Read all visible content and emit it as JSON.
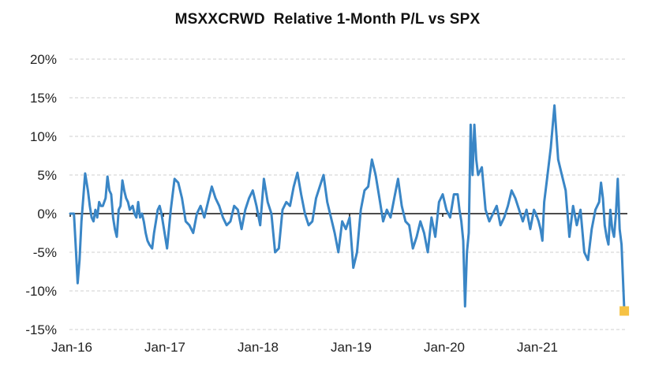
{
  "chart_data": {
    "type": "line",
    "title": "MSXXCRWD  Relative 1-Month P/L vs SPX",
    "xlabel": "",
    "ylabel": "",
    "y_unit": "%",
    "ylim": [
      -15,
      20
    ],
    "y_ticks": [
      20,
      15,
      10,
      5,
      0,
      -5,
      -10,
      -15
    ],
    "y_tick_labels": [
      "20%",
      "15%",
      "10%",
      "5%",
      "0%",
      "-5%",
      "-10%",
      "-15%"
    ],
    "x_ticks": [
      2016,
      2017,
      2018,
      2019,
      2020,
      2021
    ],
    "x_tick_labels": [
      "Jan-16",
      "Jan-17",
      "Jan-18",
      "Jan-19",
      "Jan-20",
      "Jan-21"
    ],
    "xlim": [
      2016.0,
      2021.95
    ],
    "grid": "horizontal-dashed",
    "zero_line": true,
    "legend": "none",
    "series": [
      {
        "name": "MSXXCRWD relative 1M P/L vs SPX",
        "color": "#3a86c6",
        "x": [
          2016.0,
          2016.04,
          2016.06,
          2016.08,
          2016.1,
          2016.12,
          2016.14,
          2016.16,
          2016.19,
          2016.21,
          2016.23,
          2016.25,
          2016.27,
          2016.29,
          2016.31,
          2016.33,
          2016.35,
          2016.38,
          2016.4,
          2016.42,
          2016.44,
          2016.46,
          2016.48,
          2016.5,
          2016.52,
          2016.54,
          2016.56,
          2016.58,
          2016.6,
          2016.62,
          2016.64,
          2016.67,
          2016.69,
          2016.71,
          2016.73,
          2016.75,
          2016.77,
          2016.79,
          2016.81,
          2016.83,
          2016.85,
          2016.88,
          2016.9,
          2016.92,
          2016.94,
          2016.96,
          2016.98,
          2017.0,
          2017.04,
          2017.08,
          2017.12,
          2017.16,
          2017.2,
          2017.24,
          2017.28,
          2017.32,
          2017.36,
          2017.4,
          2017.44,
          2017.48,
          2017.52,
          2017.56,
          2017.6,
          2017.64,
          2017.68,
          2017.72,
          2017.76,
          2017.8,
          2017.84,
          2017.88,
          2017.92,
          2017.96,
          2018.0,
          2018.04,
          2018.08,
          2018.12,
          2018.16,
          2018.2,
          2018.24,
          2018.28,
          2018.32,
          2018.36,
          2018.4,
          2018.44,
          2018.48,
          2018.52,
          2018.56,
          2018.6,
          2018.64,
          2018.68,
          2018.72,
          2018.76,
          2018.8,
          2018.84,
          2018.88,
          2018.92,
          2018.96,
          2019.0,
          2019.04,
          2019.08,
          2019.12,
          2019.16,
          2019.2,
          2019.24,
          2019.28,
          2019.32,
          2019.36,
          2019.4,
          2019.44,
          2019.48,
          2019.52,
          2019.56,
          2019.6,
          2019.64,
          2019.68,
          2019.72,
          2019.76,
          2019.8,
          2019.84,
          2019.88,
          2019.92,
          2019.96,
          2020.0,
          2020.04,
          2020.08,
          2020.12,
          2020.16,
          2020.18,
          2020.2,
          2020.22,
          2020.24,
          2020.26,
          2020.28,
          2020.3,
          2020.32,
          2020.34,
          2020.36,
          2020.38,
          2020.42,
          2020.46,
          2020.5,
          2020.54,
          2020.58,
          2020.62,
          2020.66,
          2020.7,
          2020.74,
          2020.78,
          2020.82,
          2020.86,
          2020.9,
          2020.94,
          2020.98,
          2021.0,
          2021.03,
          2021.05,
          2021.07,
          2021.09,
          2021.12,
          2021.16,
          2021.2,
          2021.24,
          2021.28,
          2021.32,
          2021.36,
          2021.4,
          2021.44,
          2021.48,
          2021.52,
          2021.56,
          2021.6,
          2021.64,
          2021.68,
          2021.7,
          2021.72,
          2021.74,
          2021.76,
          2021.78,
          2021.8,
          2021.82,
          2021.84,
          2021.86,
          2021.88,
          2021.9,
          2021.92,
          2021.95
        ],
        "y": [
          0.0,
          0.0,
          -4.5,
          -9.0,
          -6.0,
          -1.0,
          2.0,
          5.2,
          3.0,
          1.0,
          -0.5,
          -1.0,
          0.5,
          -0.5,
          1.5,
          1.0,
          1.0,
          2.0,
          4.8,
          3.0,
          2.5,
          -0.5,
          -2.0,
          -3.0,
          0.5,
          1.0,
          4.3,
          3.0,
          2.0,
          1.5,
          0.5,
          1.0,
          0.0,
          -0.5,
          1.5,
          -0.5,
          0.0,
          -1.0,
          -2.5,
          -3.5,
          -4.0,
          -4.5,
          -2.5,
          -1.0,
          0.5,
          1.0,
          0.0,
          -1.5,
          -4.5,
          0.5,
          4.5,
          4.0,
          2.0,
          -1.0,
          -1.5,
          -2.5,
          0.0,
          1.0,
          -0.5,
          1.5,
          3.5,
          2.0,
          1.0,
          -0.5,
          -1.5,
          -1.0,
          1.0,
          0.5,
          -2.0,
          0.5,
          2.0,
          3.0,
          1.0,
          -1.5,
          4.5,
          1.5,
          0.0,
          -5.0,
          -4.5,
          0.5,
          1.5,
          1.0,
          3.5,
          5.3,
          2.5,
          0.0,
          -1.5,
          -1.0,
          2.0,
          3.5,
          5.0,
          1.5,
          -0.5,
          -2.5,
          -5.0,
          -1.0,
          -2.0,
          -0.5,
          -7.0,
          -5.0,
          0.5,
          3.0,
          3.5,
          7.0,
          5.0,
          2.0,
          -1.0,
          0.5,
          -0.5,
          2.0,
          4.5,
          1.0,
          -1.0,
          -1.5,
          -4.5,
          -3.0,
          -1.0,
          -2.5,
          -5.0,
          -0.5,
          -3.0,
          1.5,
          2.5,
          0.5,
          -0.5,
          2.5,
          2.5,
          0.5,
          -1.0,
          -3.5,
          -12.0,
          -5.0,
          -2.5,
          11.5,
          5.0,
          11.5,
          7.0,
          5.0,
          6.0,
          0.5,
          -1.0,
          0.0,
          1.0,
          -1.5,
          -0.5,
          1.0,
          3.0,
          2.0,
          0.5,
          -1.0,
          0.5,
          -2.0,
          0.5,
          0.0,
          -1.0,
          -2.0,
          -3.5,
          1.5,
          4.5,
          8.5,
          14.0,
          7.0,
          5.0,
          3.0,
          -3.0,
          1.0,
          -1.5,
          0.5,
          -5.0,
          -6.0,
          -2.0,
          0.5,
          1.5,
          4.0,
          2.0,
          -1.5,
          -3.0,
          -4.0,
          0.5,
          -2.0,
          -3.0,
          0.0,
          4.5,
          -2.0,
          -4.0,
          -12.6
        ]
      }
    ],
    "annotations": [
      {
        "type": "end-marker",
        "x": 2021.95,
        "y": -12.6,
        "color": "#f6c244",
        "shape": "square"
      }
    ]
  }
}
